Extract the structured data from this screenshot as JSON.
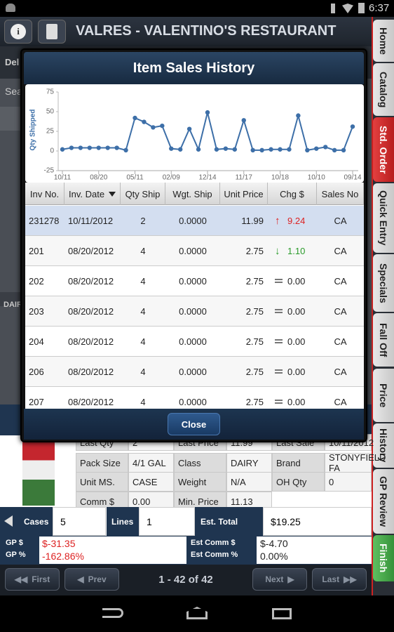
{
  "status_bar": {
    "time": "6:37"
  },
  "header": {
    "title": "VALRES - VALENTINO'S RESTAURANT"
  },
  "side_tabs": [
    "Home",
    "Catalog",
    "Std. Order",
    "Quick Entry",
    "Specials",
    "Fall Off",
    "Price",
    "History",
    "GP Review",
    "Finish"
  ],
  "background": {
    "partial_labels": [
      "Del",
      "Sea",
      "DAIR"
    ]
  },
  "dialog": {
    "title": "Item Sales History",
    "close": "Close",
    "table": {
      "columns": [
        "Inv No.",
        "Inv. Date",
        "Qty Ship",
        "Wgt. Ship",
        "Unit Price",
        "Chg $",
        "Sales No"
      ],
      "rows": [
        [
          "231278",
          "10/11/2012",
          "2",
          "0.0000",
          "11.99",
          "9.24",
          "CA"
        ],
        [
          "201",
          "08/20/2012",
          "4",
          "0.0000",
          "2.75",
          "1.10",
          "CA"
        ],
        [
          "202",
          "08/20/2012",
          "4",
          "0.0000",
          "2.75",
          "0.00",
          "CA"
        ],
        [
          "203",
          "08/20/2012",
          "4",
          "0.0000",
          "2.75",
          "0.00",
          "CA"
        ],
        [
          "204",
          "08/20/2012",
          "4",
          "0.0000",
          "2.75",
          "0.00",
          "CA"
        ],
        [
          "206",
          "08/20/2012",
          "4",
          "0.0000",
          "2.75",
          "0.00",
          "CA"
        ],
        [
          "207",
          "08/20/2012",
          "4",
          "0.0000",
          "2.75",
          "0.00",
          "CA"
        ]
      ]
    }
  },
  "chart_data": {
    "type": "line",
    "y_label": "Qty Shipped",
    "categories": [
      "10/11",
      null,
      null,
      null,
      "08/20",
      null,
      null,
      null,
      "05/11",
      null,
      null,
      null,
      "02/09",
      null,
      null,
      null,
      "12/14",
      null,
      null,
      null,
      "11/17",
      null,
      null,
      null,
      "10/18",
      null,
      null,
      null,
      "10/10",
      null,
      null,
      null,
      "09/14"
    ],
    "values": [
      2,
      4,
      4,
      4,
      4,
      4,
      4,
      1,
      42,
      37,
      30,
      32,
      3,
      2,
      28,
      2,
      49,
      2,
      3,
      2,
      39,
      1,
      1,
      2,
      2,
      2,
      45,
      1,
      3,
      5,
      1,
      1,
      31
    ],
    "color": "#3d6fa8",
    "ylim": [
      -25,
      75
    ],
    "yticks": [
      -25,
      0,
      25,
      50,
      75
    ],
    "grid": false
  },
  "item_details": {
    "cells": [
      [
        "Last Qty",
        "2",
        "Last Price",
        "11.99",
        "Last Sale",
        "10/11/2012"
      ],
      [
        "Pack Size",
        "4/1 GAL",
        "Class",
        "DAIRY",
        "Brand",
        "STONYFIELD FA"
      ],
      [
        "Unit MS.",
        "CASE",
        "Weight",
        "N/A",
        "OH Qty",
        "0"
      ],
      [
        "Comm $",
        "0.00",
        "Min. Price",
        "11.13"
      ]
    ]
  },
  "totals": {
    "cases_label": "Cases",
    "cases": "5",
    "lines_label": "Lines",
    "lines": "1",
    "est_total_label": "Est. Total",
    "est_total": "$19.25"
  },
  "gp": {
    "gp_label": "GP $",
    "gp": "$-31.35",
    "gp_pct_label": "GP %",
    "gp_pct": "-162.86%",
    "comm_label": "Est Comm $",
    "comm": "$-4.70",
    "comm_pct_label": "Est Comm %",
    "comm_pct": "0.00%"
  },
  "pager": {
    "first": "First",
    "prev": "Prev",
    "status": "1 - 42 of 42",
    "next": "Next",
    "last": "Last"
  }
}
